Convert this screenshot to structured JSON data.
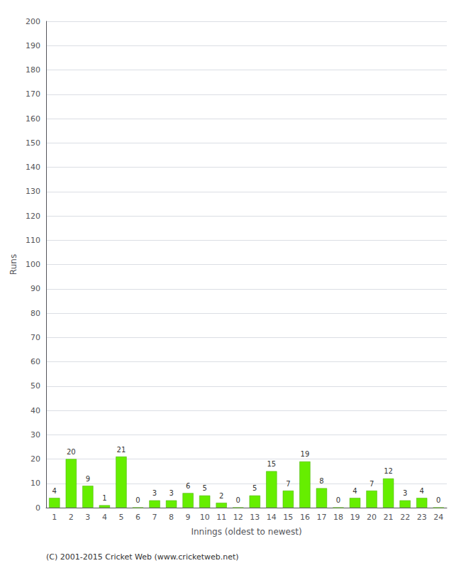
{
  "chart_data": {
    "type": "bar",
    "categories": [
      "1",
      "2",
      "3",
      "4",
      "5",
      "6",
      "7",
      "8",
      "9",
      "10",
      "11",
      "12",
      "13",
      "14",
      "15",
      "16",
      "17",
      "18",
      "19",
      "20",
      "21",
      "22",
      "23",
      "24"
    ],
    "values": [
      4,
      20,
      9,
      1,
      21,
      0,
      3,
      3,
      6,
      5,
      2,
      0,
      5,
      15,
      7,
      19,
      8,
      0,
      4,
      7,
      12,
      3,
      4,
      0
    ],
    "color": "#66ee00",
    "xlabel": "Innings (oldest to newest)",
    "ylabel": "Runs",
    "ylim": [
      0,
      200
    ],
    "yticks": [
      0,
      10,
      20,
      30,
      40,
      50,
      60,
      70,
      80,
      90,
      100,
      110,
      120,
      130,
      140,
      150,
      160,
      170,
      180,
      190,
      200
    ],
    "grid": true,
    "data_labels": true,
    "annotations": [
      "(C) 2001-2015 Cricket Web (www.cricketweb.net)"
    ]
  }
}
